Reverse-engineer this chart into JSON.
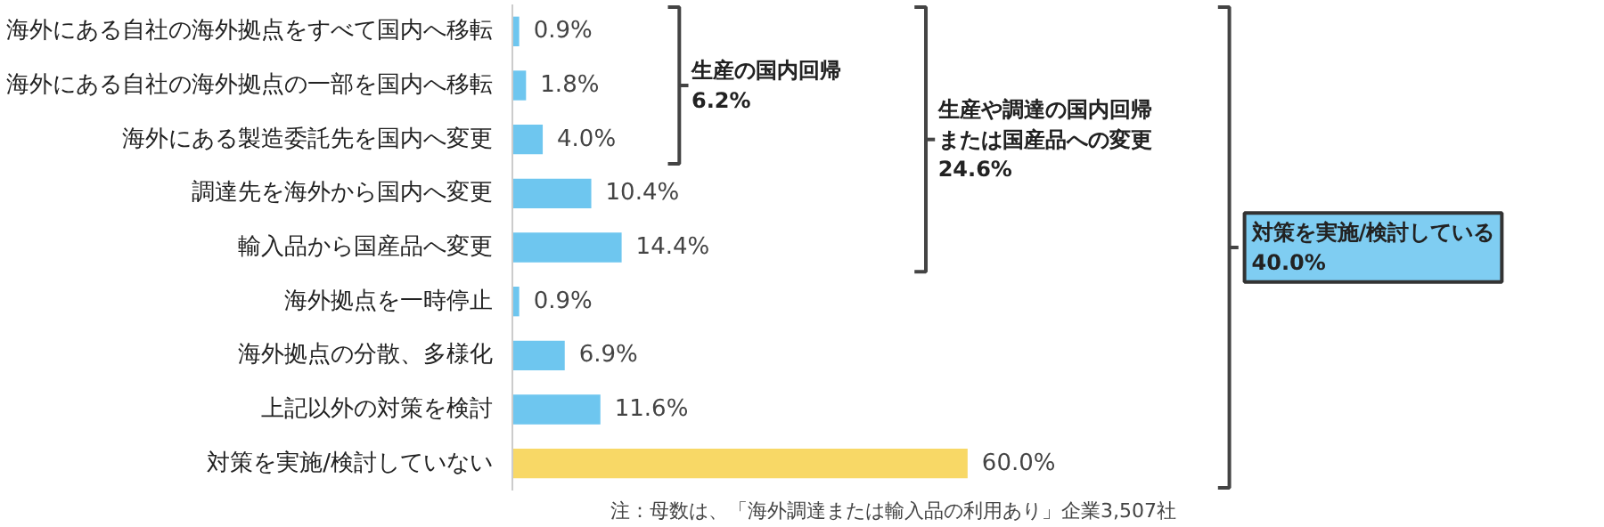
{
  "chart_data": {
    "type": "bar",
    "orientation": "horizontal",
    "relative": false,
    "categories": [
      "海外にある自社の海外拠点をすべて国内へ移転",
      "海外にある自社の海外拠点の一部を国内へ移転",
      "海外にある製造委託先を国内へ変更",
      "調達先を海外から国内へ変更",
      "輸入品から国産品へ変更",
      "海外拠点を一時停止",
      "海外拠点の分散、多様化",
      "上記以外の対策を検討",
      "対策を実施/検討していない"
    ],
    "values": [
      0.9,
      1.8,
      4.0,
      10.4,
      14.4,
      0.9,
      6.9,
      11.6,
      60.0
    ],
    "value_labels": [
      "0.9%",
      "1.8%",
      "4.0%",
      "10.4%",
      "14.4%",
      "0.9%",
      "6.9%",
      "11.6%",
      "60.0%"
    ],
    "colors": [
      "#6ec6ef",
      "#6ec6ef",
      "#6ec6ef",
      "#6ec6ef",
      "#6ec6ef",
      "#6ec6ef",
      "#6ec6ef",
      "#6ec6ef",
      "#f8d866"
    ],
    "annotations": [
      "生産の国内回帰\n6.2%",
      "生産や調達の国内回帰または国産品への変更\n24.6%",
      "対策を実施/検討している\n40.0%",
      "注：母数は、「海外調達または輸入品の利用あり」企業3,507社"
    ]
  }
}
